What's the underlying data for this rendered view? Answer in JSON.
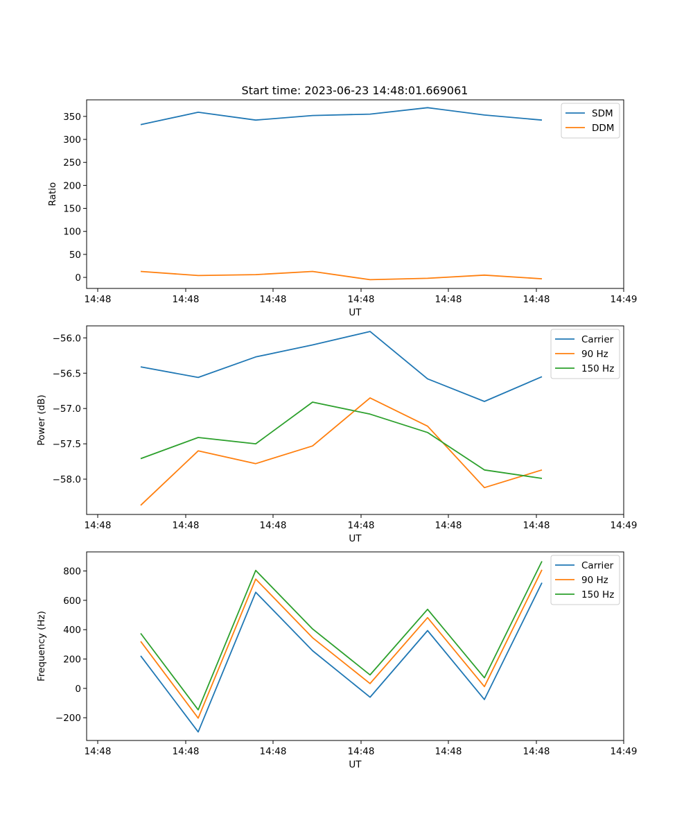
{
  "figure": {
    "title": "Start time: 2023-06-23 14:48:01.669061"
  },
  "chart_data": [
    {
      "type": "line",
      "title": "Start time: 2023-06-23 14:48:01.669061",
      "xlabel": "UT",
      "ylabel": "Ratio",
      "x_tick_labels": [
        "14:48",
        "14:48",
        "14:48",
        "14:48",
        "14:48",
        "14:48",
        "14:49"
      ],
      "y_ticks": [
        0,
        50,
        100,
        150,
        200,
        250,
        300,
        350
      ],
      "ylim": [
        -24,
        386
      ],
      "grid": false,
      "legend_position": "top-right",
      "series": [
        {
          "name": "SDM",
          "color": "#1f77b4",
          "values": [
            332,
            359,
            342,
            352,
            355,
            369,
            353,
            342
          ]
        },
        {
          "name": "DDM",
          "color": "#ff7f0e",
          "values": [
            13,
            4,
            6,
            13,
            -5,
            -2,
            5,
            -3
          ]
        }
      ]
    },
    {
      "type": "line",
      "title": "",
      "xlabel": "UT",
      "ylabel": "Power (dB)",
      "x_tick_labels": [
        "14:48",
        "14:48",
        "14:48",
        "14:48",
        "14:48",
        "14:48",
        "14:49"
      ],
      "y_ticks": [
        -58.0,
        -57.5,
        -57.0,
        -56.5,
        -56.0
      ],
      "y_tick_labels": [
        "−58.0",
        "−57.5",
        "−57.0",
        "−56.5",
        "−56.0"
      ],
      "ylim": [
        -58.5,
        -55.83
      ],
      "grid": false,
      "legend_position": "top-right",
      "series": [
        {
          "name": "Carrier",
          "color": "#1f77b4",
          "values": [
            -56.41,
            -56.56,
            -56.27,
            -56.1,
            -55.91,
            -56.58,
            -56.9,
            -56.55
          ]
        },
        {
          "name": "90 Hz",
          "color": "#ff7f0e",
          "values": [
            -58.37,
            -57.6,
            -57.78,
            -57.53,
            -56.85,
            -57.25,
            -58.12,
            -57.87
          ]
        },
        {
          "name": "150 Hz",
          "color": "#2ca02c",
          "values": [
            -57.71,
            -57.41,
            -57.5,
            -56.91,
            -57.08,
            -57.34,
            -57.87,
            -57.99
          ]
        }
      ]
    },
    {
      "type": "line",
      "title": "",
      "xlabel": "UT",
      "ylabel": "Frequency (Hz)",
      "x_tick_labels": [
        "14:48",
        "14:48",
        "14:48",
        "14:48",
        "14:48",
        "14:48",
        "14:49"
      ],
      "y_ticks": [
        -200,
        0,
        200,
        400,
        600,
        800
      ],
      "y_tick_labels": [
        "−200",
        "0",
        "200",
        "400",
        "600",
        "800"
      ],
      "ylim": [
        -355,
        930
      ],
      "grid": false,
      "legend_position": "top-right",
      "series": [
        {
          "name": "Carrier",
          "color": "#1f77b4",
          "values": [
            222,
            -297,
            655,
            257,
            -60,
            394,
            -76,
            720
          ]
        },
        {
          "name": "90 Hz",
          "color": "#ff7f0e",
          "values": [
            320,
            -203,
            745,
            345,
            33,
            482,
            12,
            808
          ]
        },
        {
          "name": "150 Hz",
          "color": "#2ca02c",
          "values": [
            375,
            -146,
            804,
            405,
            92,
            539,
            72,
            866
          ]
        }
      ]
    }
  ]
}
